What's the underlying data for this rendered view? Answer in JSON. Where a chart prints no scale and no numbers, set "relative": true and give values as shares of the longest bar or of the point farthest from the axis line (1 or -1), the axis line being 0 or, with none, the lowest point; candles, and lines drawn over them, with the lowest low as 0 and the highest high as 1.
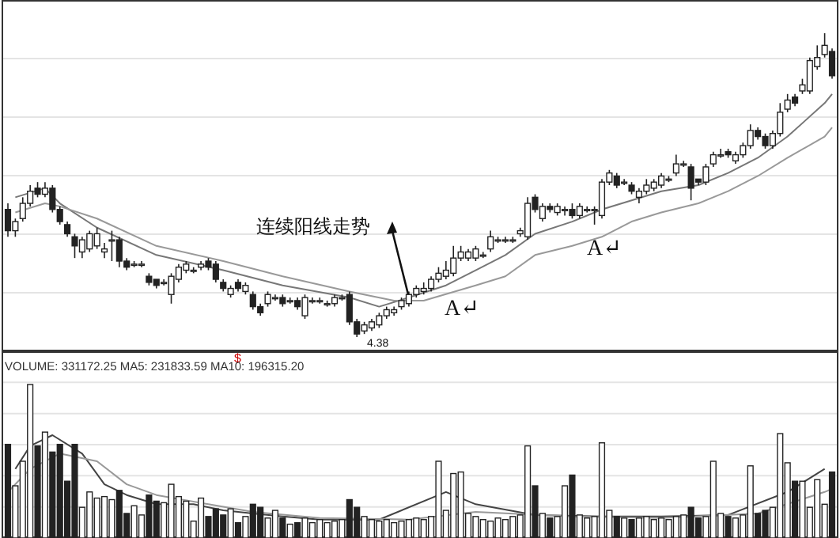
{
  "chart_data": [
    {
      "type": "candlestick",
      "relative": true,
      "grid": true,
      "categories": [
        null,
        null,
        null,
        null,
        null,
        null,
        null,
        null,
        null,
        null,
        null,
        null,
        null,
        null,
        null,
        null,
        null,
        null,
        null,
        null,
        null,
        null,
        null,
        null,
        null,
        null,
        null,
        null,
        null,
        null,
        null,
        null,
        null,
        null,
        null,
        null,
        null,
        null,
        null,
        null,
        null,
        null,
        null,
        null,
        null,
        null,
        null,
        null,
        null,
        null,
        null,
        null,
        null,
        null,
        null,
        null,
        null,
        null,
        null,
        null,
        null,
        null,
        null,
        null,
        null,
        null,
        null,
        null,
        null,
        null,
        null,
        null,
        null,
        null,
        null,
        null,
        null,
        null,
        null,
        null,
        null,
        null,
        null,
        null,
        null,
        null,
        null,
        null,
        null,
        null,
        null,
        null,
        null,
        null,
        null,
        null,
        null,
        null,
        null,
        null,
        null,
        null,
        null,
        null,
        null,
        null,
        null,
        null,
        null,
        null,
        null,
        null
      ],
      "ohlc": [
        [
          0.42,
          0.44,
          0.33,
          0.35
        ],
        [
          0.35,
          0.39,
          0.33,
          0.38
        ],
        [
          0.39,
          0.46,
          0.38,
          0.44
        ],
        [
          0.44,
          0.5,
          0.43,
          0.48
        ],
        [
          0.49,
          0.51,
          0.46,
          0.47
        ],
        [
          0.47,
          0.51,
          0.46,
          0.49
        ],
        [
          0.49,
          0.5,
          0.41,
          0.42
        ],
        [
          0.42,
          0.43,
          0.37,
          0.38
        ],
        [
          0.37,
          0.38,
          0.33,
          0.34
        ],
        [
          0.33,
          0.34,
          0.26,
          0.3
        ],
        [
          0.28,
          0.33,
          0.26,
          0.32
        ],
        [
          0.29,
          0.35,
          0.28,
          0.34
        ],
        [
          0.3,
          0.36,
          0.29,
          0.34
        ],
        [
          0.28,
          0.31,
          0.26,
          0.29
        ],
        [
          0.32,
          0.35,
          0.25,
          0.32
        ],
        [
          0.32,
          0.33,
          0.23,
          0.25
        ],
        [
          0.25,
          0.26,
          0.22,
          0.23
        ],
        [
          0.24,
          0.25,
          0.23,
          0.24
        ],
        [
          0.24,
          0.25,
          0.23,
          0.24
        ],
        [
          0.2,
          0.21,
          0.17,
          0.18
        ],
        [
          0.19,
          0.19,
          0.16,
          0.17
        ],
        [
          0.18,
          0.19,
          0.17,
          0.18
        ],
        [
          0.14,
          0.21,
          0.11,
          0.2
        ],
        [
          0.19,
          0.24,
          0.18,
          0.23
        ],
        [
          0.22,
          0.25,
          0.21,
          0.24
        ],
        [
          0.22,
          0.23,
          0.21,
          0.22
        ],
        [
          0.23,
          0.25,
          0.22,
          0.24
        ],
        [
          0.25,
          0.26,
          0.22,
          0.23
        ],
        [
          0.24,
          0.25,
          0.18,
          0.19
        ],
        [
          0.18,
          0.19,
          0.15,
          0.16
        ],
        [
          0.14,
          0.17,
          0.13,
          0.16
        ],
        [
          0.18,
          0.19,
          0.15,
          0.16
        ],
        [
          0.15,
          0.18,
          0.14,
          0.17
        ],
        [
          0.14,
          0.15,
          0.09,
          0.1
        ],
        [
          0.1,
          0.11,
          0.07,
          0.08
        ],
        [
          0.11,
          0.15,
          0.1,
          0.14
        ],
        [
          0.13,
          0.14,
          0.12,
          0.13
        ],
        [
          0.13,
          0.14,
          0.1,
          0.11
        ],
        [
          0.12,
          0.13,
          0.11,
          0.12
        ],
        [
          0.12,
          0.13,
          0.09,
          0.1
        ],
        [
          0.07,
          0.14,
          0.06,
          0.13
        ],
        [
          0.12,
          0.13,
          0.11,
          0.12
        ],
        [
          0.12,
          0.13,
          0.11,
          0.12
        ],
        [
          0.11,
          0.12,
          0.1,
          0.11
        ],
        [
          0.11,
          0.14,
          0.1,
          0.13
        ],
        [
          0.13,
          0.14,
          0.12,
          0.13
        ],
        [
          0.14,
          0.15,
          0.04,
          0.05
        ],
        [
          0.05,
          0.06,
          0,
          0.01
        ],
        [
          0.02,
          0.05,
          0.01,
          0.04
        ],
        [
          0.03,
          0.06,
          0.02,
          0.05
        ],
        [
          0.04,
          0.08,
          0.03,
          0.07
        ],
        [
          0.07,
          0.1,
          0.06,
          0.09
        ],
        [
          0.08,
          0.1,
          0.07,
          0.09
        ],
        [
          0.1,
          0.13,
          0.09,
          0.12
        ],
        [
          0.11,
          0.15,
          0.1,
          0.14
        ],
        [
          0.14,
          0.17,
          0.13,
          0.16
        ],
        [
          0.15,
          0.18,
          0.14,
          0.16
        ],
        [
          0.16,
          0.2,
          0.15,
          0.19
        ],
        [
          0.19,
          0.23,
          0.18,
          0.21
        ],
        [
          0.2,
          0.25,
          0.19,
          0.22
        ],
        [
          0.21,
          0.3,
          0.2,
          0.26
        ],
        [
          0.26,
          0.3,
          0.25,
          0.28
        ],
        [
          0.26,
          0.29,
          0.25,
          0.28
        ],
        [
          0.26,
          0.3,
          0.25,
          0.29
        ],
        [
          0.27,
          0.28,
          0.26,
          0.27
        ],
        [
          0.29,
          0.35,
          0.28,
          0.33
        ],
        [
          0.32,
          0.33,
          0.31,
          0.32
        ],
        [
          0.32,
          0.33,
          0.31,
          0.32
        ],
        [
          0.32,
          0.33,
          0.31,
          0.32
        ],
        [
          0.34,
          0.36,
          0.33,
          0.35
        ],
        [
          0.33,
          0.46,
          0.32,
          0.44
        ],
        [
          0.46,
          0.47,
          0.41,
          0.42
        ],
        [
          0.39,
          0.44,
          0.38,
          0.43
        ],
        [
          0.43,
          0.44,
          0.41,
          0.42
        ],
        [
          0.41,
          0.44,
          0.4,
          0.43
        ],
        [
          0.42,
          0.43,
          0.4,
          0.42
        ],
        [
          0.42,
          0.44,
          0.39,
          0.4
        ],
        [
          0.4,
          0.44,
          0.39,
          0.43
        ],
        [
          0.42,
          0.43,
          0.41,
          0.42
        ],
        [
          0.42,
          0.43,
          0.37,
          0.42
        ],
        [
          0.4,
          0.52,
          0.39,
          0.51
        ],
        [
          0.51,
          0.55,
          0.5,
          0.54
        ],
        [
          0.53,
          0.54,
          0.49,
          0.5
        ],
        [
          0.51,
          0.52,
          0.5,
          0.51
        ],
        [
          0.5,
          0.51,
          0.47,
          0.48
        ],
        [
          0.46,
          0.49,
          0.44,
          0.48
        ],
        [
          0.48,
          0.52,
          0.47,
          0.5
        ],
        [
          0.49,
          0.52,
          0.48,
          0.51
        ],
        [
          0.5,
          0.54,
          0.49,
          0.53
        ],
        [
          0.52,
          0.53,
          0.51,
          0.52
        ],
        [
          0.54,
          0.6,
          0.53,
          0.57
        ],
        [
          0.57,
          0.58,
          0.56,
          0.57
        ],
        [
          0.56,
          0.57,
          0.45,
          0.49
        ],
        [
          0.52,
          0.52,
          0.5,
          0.51
        ],
        [
          0.51,
          0.57,
          0.5,
          0.56
        ],
        [
          0.57,
          0.61,
          0.56,
          0.6
        ],
        [
          0.6,
          0.62,
          0.59,
          0.6
        ],
        [
          0.61,
          0.62,
          0.59,
          0.6
        ],
        [
          0.58,
          0.61,
          0.57,
          0.6
        ],
        [
          0.6,
          0.64,
          0.59,
          0.63
        ],
        [
          0.63,
          0.7,
          0.62,
          0.68
        ],
        [
          0.68,
          0.69,
          0.65,
          0.66
        ],
        [
          0.66,
          0.67,
          0.62,
          0.63
        ],
        [
          0.63,
          0.68,
          0.62,
          0.67
        ],
        [
          0.67,
          0.77,
          0.66,
          0.74
        ],
        [
          0.75,
          0.8,
          0.74,
          0.78
        ],
        [
          0.79,
          0.8,
          0.76,
          0.77
        ],
        [
          0.81,
          0.85,
          0.8,
          0.83
        ],
        [
          0.81,
          0.92,
          0.8,
          0.91
        ],
        [
          0.89,
          0.96,
          0.88,
          0.92
        ],
        [
          0.93,
          1,
          0.92,
          0.96
        ],
        [
          0.94,
          0.95,
          0.85,
          0.86
        ]
      ],
      "colors": [
        "#222222",
        "#ffffff",
        "#ffffff",
        "#ffffff",
        "#222222",
        "#ffffff",
        "#222222",
        "#222222",
        "#222222",
        "#222222",
        "#ffffff",
        "#ffffff",
        "#ffffff",
        "#ffffff",
        "#ffffff",
        "#222222",
        "#222222",
        "#ffffff",
        "#ffffff",
        "#222222",
        "#222222",
        "#ffffff",
        "#ffffff",
        "#ffffff",
        "#ffffff",
        "#ffffff",
        "#ffffff",
        "#222222",
        "#222222",
        "#222222",
        "#ffffff",
        "#222222",
        "#ffffff",
        "#222222",
        "#222222",
        "#ffffff",
        "#ffffff",
        "#222222",
        "#ffffff",
        "#222222",
        "#ffffff",
        "#ffffff",
        "#ffffff",
        "#ffffff",
        "#ffffff",
        "#ffffff",
        "#222222",
        "#222222",
        "#ffffff",
        "#ffffff",
        "#ffffff",
        "#ffffff",
        "#ffffff",
        "#ffffff",
        "#ffffff",
        "#ffffff",
        "#ffffff",
        "#ffffff",
        "#ffffff",
        "#ffffff",
        "#ffffff",
        "#ffffff",
        "#ffffff",
        "#ffffff",
        "#ffffff",
        "#ffffff",
        "#ffffff",
        "#ffffff",
        "#ffffff",
        "#ffffff",
        "#ffffff",
        "#222222",
        "#ffffff",
        "#222222",
        "#ffffff",
        "#ffffff",
        "#222222",
        "#ffffff",
        "#ffffff",
        "#ffffff",
        "#ffffff",
        "#ffffff",
        "#222222",
        "#ffffff",
        "#222222",
        "#ffffff",
        "#ffffff",
        "#ffffff",
        "#ffffff",
        "#ffffff",
        "#ffffff",
        "#ffffff",
        "#222222",
        "#222222",
        "#ffffff",
        "#ffffff",
        "#ffffff",
        "#222222",
        "#ffffff",
        "#ffffff",
        "#ffffff",
        "#222222",
        "#222222",
        "#ffffff",
        "#ffffff",
        "#ffffff",
        "#222222",
        "#ffffff",
        "#ffffff",
        "#ffffff",
        "#ffffff",
        "#222222"
      ],
      "series": [
        {
          "type": "line",
          "color": "#777777",
          "values": [
            null,
            0.46,
            null,
            null,
            null,
            0.49,
            null,
            0.44,
            null,
            null,
            null,
            null,
            0.36,
            null,
            null,
            null,
            null,
            null,
            null,
            null,
            0.27,
            null,
            null,
            null,
            null,
            null,
            null,
            null,
            null,
            0.22,
            null,
            null,
            null,
            null,
            null,
            null,
            null,
            0.17,
            null,
            null,
            null,
            null,
            null,
            null,
            null,
            null,
            0.13,
            null,
            null,
            null,
            0.1,
            null,
            null,
            null,
            0.13,
            null,
            null,
            null,
            null,
            0.17,
            null,
            null,
            null,
            0.22,
            null,
            null,
            null,
            0.27,
            null,
            null,
            null,
            0.34,
            null,
            null,
            null,
            null,
            0.38,
            null,
            null,
            null,
            0.42,
            null,
            null,
            null,
            0.45,
            null,
            null,
            null,
            0.48,
            null,
            null,
            null,
            null,
            0.5,
            null,
            null,
            null,
            0.54,
            null,
            null,
            null,
            0.59,
            null,
            null,
            null,
            0.66,
            null,
            null,
            null,
            null,
            0.77,
            0.8
          ]
        },
        {
          "type": "line",
          "color": "#999999",
          "values": [
            null,
            0.41,
            null,
            null,
            null,
            0.44,
            null,
            0.43,
            null,
            null,
            null,
            null,
            0.39,
            null,
            null,
            null,
            null,
            null,
            null,
            null,
            0.3,
            null,
            null,
            null,
            null,
            null,
            null,
            null,
            null,
            0.25,
            null,
            null,
            null,
            null,
            null,
            null,
            null,
            0.2,
            null,
            null,
            null,
            null,
            null,
            null,
            null,
            null,
            0.15,
            null,
            null,
            null,
            null,
            null,
            0.12,
            null,
            null,
            null,
            0.12,
            null,
            null,
            null,
            null,
            null,
            null,
            0.17,
            null,
            null,
            null,
            0.2,
            null,
            null,
            null,
            0.27,
            null,
            null,
            null,
            null,
            0.3,
            null,
            null,
            null,
            0.33,
            null,
            null,
            null,
            0.38,
            null,
            null,
            null,
            0.41,
            null,
            null,
            null,
            null,
            0.44,
            null,
            null,
            null,
            0.48,
            null,
            null,
            null,
            0.53,
            null,
            null,
            null,
            0.59,
            null,
            null,
            null,
            null,
            0.66,
            0.69
          ]
        }
      ],
      "annotations": [
        "连续阳线走势",
        "A↵",
        "A↵",
        "4.38",
        "$"
      ]
    },
    {
      "type": "bar",
      "relative": true,
      "grid": true,
      "title": "VOLUME: 331172.25 MA5: 231833.59 MA10: 196315.20",
      "categories": [
        null,
        null,
        null,
        null,
        null,
        null,
        null,
        null,
        null,
        null,
        null,
        null,
        null,
        null,
        null,
        null,
        null,
        null,
        null,
        null,
        null,
        null,
        null,
        null,
        null,
        null,
        null,
        null,
        null,
        null,
        null,
        null,
        null,
        null,
        null,
        null,
        null,
        null,
        null,
        null,
        null,
        null,
        null,
        null,
        null,
        null,
        null,
        null,
        null,
        null,
        null,
        null,
        null,
        null,
        null,
        null,
        null,
        null,
        null,
        null,
        null,
        null,
        null,
        null,
        null,
        null,
        null,
        null,
        null,
        null,
        null,
        null,
        null,
        null,
        null,
        null,
        null,
        null,
        null,
        null,
        null,
        null,
        null,
        null,
        null,
        null,
        null,
        null,
        null,
        null,
        null,
        null,
        null,
        null,
        null,
        null,
        null,
        null,
        null,
        null,
        null,
        null,
        null,
        null,
        null,
        null,
        null,
        null,
        null,
        null,
        null,
        null
      ],
      "values": [
        0.61,
        0.34,
        0.5,
        1.0,
        0.6,
        0.69,
        0.56,
        0.61,
        0.37,
        0.61,
        0.2,
        0.3,
        0.26,
        0.27,
        0.25,
        0.31,
        0.16,
        0.21,
        0.15,
        0.28,
        0.24,
        0.23,
        0.35,
        0.27,
        0.24,
        0.11,
        0.26,
        0.14,
        0.19,
        0.15,
        0.19,
        0.1,
        0.14,
        0.22,
        0.2,
        0.13,
        0.18,
        0.13,
        0.09,
        0.1,
        0.13,
        0.1,
        0.12,
        0.1,
        0.11,
        0.12,
        0.25,
        0.2,
        0.14,
        0.12,
        0.11,
        0.12,
        0.1,
        0.11,
        0.12,
        0.13,
        0.12,
        0.14,
        0.5,
        0.18,
        0.42,
        0.43,
        0.16,
        0.14,
        0.12,
        0.11,
        0.13,
        0.12,
        0.14,
        0.15,
        0.6,
        0.34,
        0.16,
        0.13,
        0.14,
        0.34,
        0.41,
        0.15,
        0.13,
        0.14,
        0.62,
        0.18,
        0.14,
        0.13,
        0.12,
        0.13,
        0.14,
        0.12,
        0.13,
        0.12,
        0.14,
        0.15,
        0.2,
        0.13,
        0.14,
        0.5,
        0.16,
        0.14,
        0.13,
        0.15,
        0.47,
        0.16,
        0.18,
        0.2,
        0.68,
        0.49,
        0.37,
        0.37,
        0.2,
        0.38,
        0.22,
        0.43
      ],
      "colors": [
        "#222222",
        "#ffffff",
        "#ffffff",
        "#ffffff",
        "#222222",
        "#ffffff",
        "#222222",
        "#222222",
        "#222222",
        "#222222",
        "#ffffff",
        "#ffffff",
        "#ffffff",
        "#ffffff",
        "#ffffff",
        "#222222",
        "#222222",
        "#ffffff",
        "#ffffff",
        "#222222",
        "#222222",
        "#ffffff",
        "#ffffff",
        "#ffffff",
        "#ffffff",
        "#ffffff",
        "#ffffff",
        "#222222",
        "#222222",
        "#222222",
        "#ffffff",
        "#222222",
        "#ffffff",
        "#222222",
        "#222222",
        "#ffffff",
        "#ffffff",
        "#222222",
        "#ffffff",
        "#222222",
        "#ffffff",
        "#ffffff",
        "#ffffff",
        "#ffffff",
        "#ffffff",
        "#ffffff",
        "#222222",
        "#222222",
        "#ffffff",
        "#ffffff",
        "#ffffff",
        "#ffffff",
        "#ffffff",
        "#ffffff",
        "#ffffff",
        "#ffffff",
        "#ffffff",
        "#ffffff",
        "#ffffff",
        "#ffffff",
        "#ffffff",
        "#ffffff",
        "#ffffff",
        "#ffffff",
        "#ffffff",
        "#ffffff",
        "#ffffff",
        "#ffffff",
        "#ffffff",
        "#ffffff",
        "#ffffff",
        "#222222",
        "#ffffff",
        "#222222",
        "#ffffff",
        "#ffffff",
        "#222222",
        "#ffffff",
        "#ffffff",
        "#ffffff",
        "#ffffff",
        "#ffffff",
        "#222222",
        "#ffffff",
        "#222222",
        "#ffffff",
        "#ffffff",
        "#ffffff",
        "#ffffff",
        "#ffffff",
        "#ffffff",
        "#ffffff",
        "#222222",
        "#222222",
        "#ffffff",
        "#ffffff",
        "#ffffff",
        "#222222",
        "#ffffff",
        "#ffffff",
        "#ffffff",
        "#222222",
        "#222222",
        "#ffffff",
        "#ffffff",
        "#ffffff",
        "#222222",
        "#ffffff",
        "#ffffff",
        "#ffffff",
        "#ffffff",
        "#222222"
      ],
      "series": [
        {
          "type": "line",
          "color": "#444444",
          "values": [
            null,
            0.45,
            null,
            0.6,
            null,
            null,
            0.67,
            null,
            null,
            null,
            0.55,
            null,
            null,
            0.35,
            null,
            null,
            0.28,
            null,
            null,
            null,
            0.22,
            null,
            null,
            null,
            null,
            0.22,
            null,
            null,
            null,
            0.18,
            null,
            null,
            null,
            0.16,
            null,
            null,
            null,
            0.14,
            null,
            null,
            null,
            null,
            0.12,
            null,
            null,
            null,
            null,
            null,
            null,
            null,
            0.12,
            null,
            null,
            null,
            null,
            null,
            null,
            null,
            null,
            0.3,
            null,
            null,
            null,
            0.22,
            null,
            null,
            null,
            null,
            null,
            null,
            null,
            0.15,
            null,
            null,
            null,
            null,
            null,
            null,
            null,
            null,
            0.14,
            null,
            null,
            null,
            null,
            null,
            null,
            null,
            0.14,
            null,
            null,
            null,
            null,
            null,
            null,
            null,
            null,
            0.15,
            null,
            null,
            null,
            null,
            null,
            null,
            null,
            0.3,
            null,
            null,
            null,
            null,
            0.45,
            null
          ]
        },
        {
          "type": "line",
          "color": "#999999",
          "values": [
            0.3,
            null,
            null,
            0.45,
            null,
            null,
            null,
            0.55,
            null,
            null,
            null,
            null,
            0.5,
            null,
            null,
            null,
            0.35,
            null,
            null,
            null,
            0.28,
            null,
            null,
            null,
            null,
            null,
            null,
            0.22,
            null,
            null,
            null,
            null,
            null,
            0.17,
            null,
            null,
            null,
            null,
            null,
            null,
            null,
            null,
            0.13,
            null,
            null,
            null,
            null,
            null,
            null,
            null,
            null,
            null,
            null,
            null,
            0.12,
            null,
            null,
            null,
            null,
            null,
            null,
            null,
            null,
            0.17,
            null,
            null,
            null,
            null,
            null,
            null,
            null,
            null,
            null,
            null,
            null,
            null,
            0.14,
            null,
            null,
            null,
            null,
            null,
            null,
            null,
            null,
            null,
            null,
            null,
            0.13,
            null,
            null,
            null,
            null,
            null,
            null,
            null,
            null,
            null,
            null,
            null,
            null,
            0.16,
            null,
            null,
            null,
            null,
            null,
            null,
            null,
            null,
            0.3,
            0.32
          ]
        }
      ]
    }
  ]
}
